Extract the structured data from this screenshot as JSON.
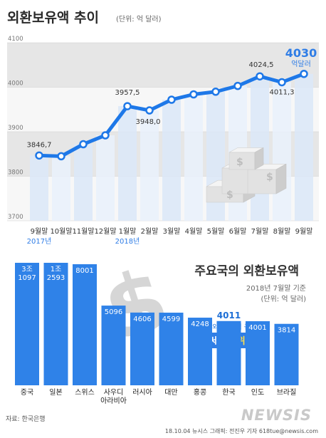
{
  "header": {
    "title": "외환보유액 추이",
    "unit": "(단위: 억 달러)"
  },
  "colors": {
    "accent": "#2f7de6",
    "line": "#1e78e8",
    "bar": "#2f82e8",
    "band": "#e6e6e6"
  },
  "chart_data": [
    {
      "type": "line",
      "title": "외환보유액 추이",
      "unit": "(단위: 억 달러)",
      "categories": [
        "9월말",
        "10월말",
        "11월말",
        "12월말",
        "1월말",
        "2월말",
        "3월말",
        "4월말",
        "5월말",
        "6월말",
        "7월말",
        "8월말",
        "9월말"
      ],
      "year_labels": [
        "2017년",
        "",
        "",
        "",
        "2018년",
        "",
        "",
        "",
        "",
        "",
        "",
        "",
        ""
      ],
      "values": [
        3846.7,
        3845.0,
        3872.0,
        3892.0,
        3957.5,
        3948.0,
        3972.0,
        3984.0,
        3990.0,
        4003.0,
        4024.5,
        4011.3,
        4030.0
      ],
      "labels": [
        "3846,7",
        "",
        "",
        "",
        "3957,5",
        "3948,0",
        "",
        "",
        "",
        "",
        "4024,5",
        "4011,3",
        ""
      ],
      "ylim": [
        3700,
        4100
      ],
      "yticks": [
        "3700",
        "3800",
        "3900",
        "4000",
        "4100"
      ],
      "highlight": {
        "value": "4030",
        "unit": "억달러"
      },
      "grid": true
    },
    {
      "type": "bar",
      "title": "주요국의 외환보유액",
      "subtitle": "2018년 7월말 기준",
      "unit": "(단위: 억 달러)",
      "categories": [
        "중국",
        "일본",
        "스위스",
        "사우디아라비아",
        "러시아",
        "대만",
        "홍콩",
        "한국",
        "인도",
        "브라질"
      ],
      "category_lines": [
        [
          "중국"
        ],
        [
          "일본"
        ],
        [
          "스위스"
        ],
        [
          "사우디",
          "아라비아"
        ],
        [
          "러시아"
        ],
        [
          "대만"
        ],
        [
          "홍콩"
        ],
        [
          "한국"
        ],
        [
          "인도"
        ],
        [
          "브라질"
        ]
      ],
      "values": [
        31097,
        12593,
        8001,
        5096,
        4606,
        4599,
        4248,
        4011,
        4001,
        3814
      ],
      "value_labels": [
        [
          "3조",
          "1097"
        ],
        [
          "1조",
          "2593"
        ],
        [
          "8001"
        ],
        [
          "5096"
        ],
        [
          "4606"
        ],
        [
          "4599"
        ],
        [
          "4248"
        ],
        [
          "4011"
        ],
        [
          "4001"
        ],
        [
          "3814"
        ]
      ],
      "callout": {
        "line1": "한국 외환보유액 규모",
        "prefix": "세계 ",
        "rank": "8위"
      }
    }
  ],
  "footer": {
    "source": "자료: 한국은행",
    "credit": "18.10.04  뉴시스 그래픽: 전진우 기자 618tue@newsis.com",
    "logo": "NEWSIS"
  }
}
